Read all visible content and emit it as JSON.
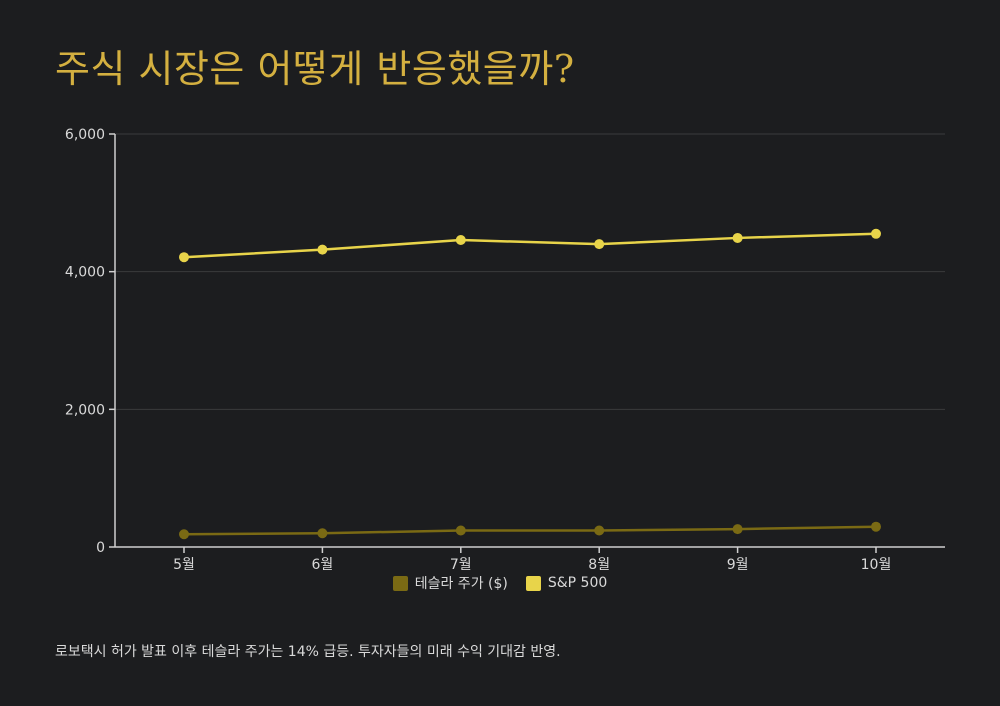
{
  "title": "주식 시장은 어떻게 반응했을까?",
  "caption": "로보택시 허가 발표 이후 테슬라 주가는 14% 급등. 투자자들의 미래 수익 기대감 반영.",
  "chart_data": {
    "type": "line",
    "categories": [
      "5월",
      "6월",
      "7월",
      "8월",
      "9월",
      "10월"
    ],
    "y_ticks": [
      0,
      2000,
      4000,
      6000
    ],
    "y_tick_labels": [
      "0",
      "2,000",
      "4,000",
      "6,000"
    ],
    "ylim": [
      0,
      6000
    ],
    "grid": true,
    "legend_position": "bottom-center",
    "series": [
      {
        "name": "테슬라 주가 ($)",
        "color": "#7a6a14",
        "values": [
          185,
          200,
          240,
          240,
          260,
          295
        ]
      },
      {
        "name": "S&P 500",
        "color": "#e8d44a",
        "values": [
          4210,
          4320,
          4460,
          4400,
          4490,
          4550
        ]
      }
    ]
  },
  "colors": {
    "background": "#1c1d1f",
    "title": "#d4b040",
    "text": "#d9d9d9",
    "grid": "#3a3b3d",
    "axis": "#cfcfcf"
  }
}
